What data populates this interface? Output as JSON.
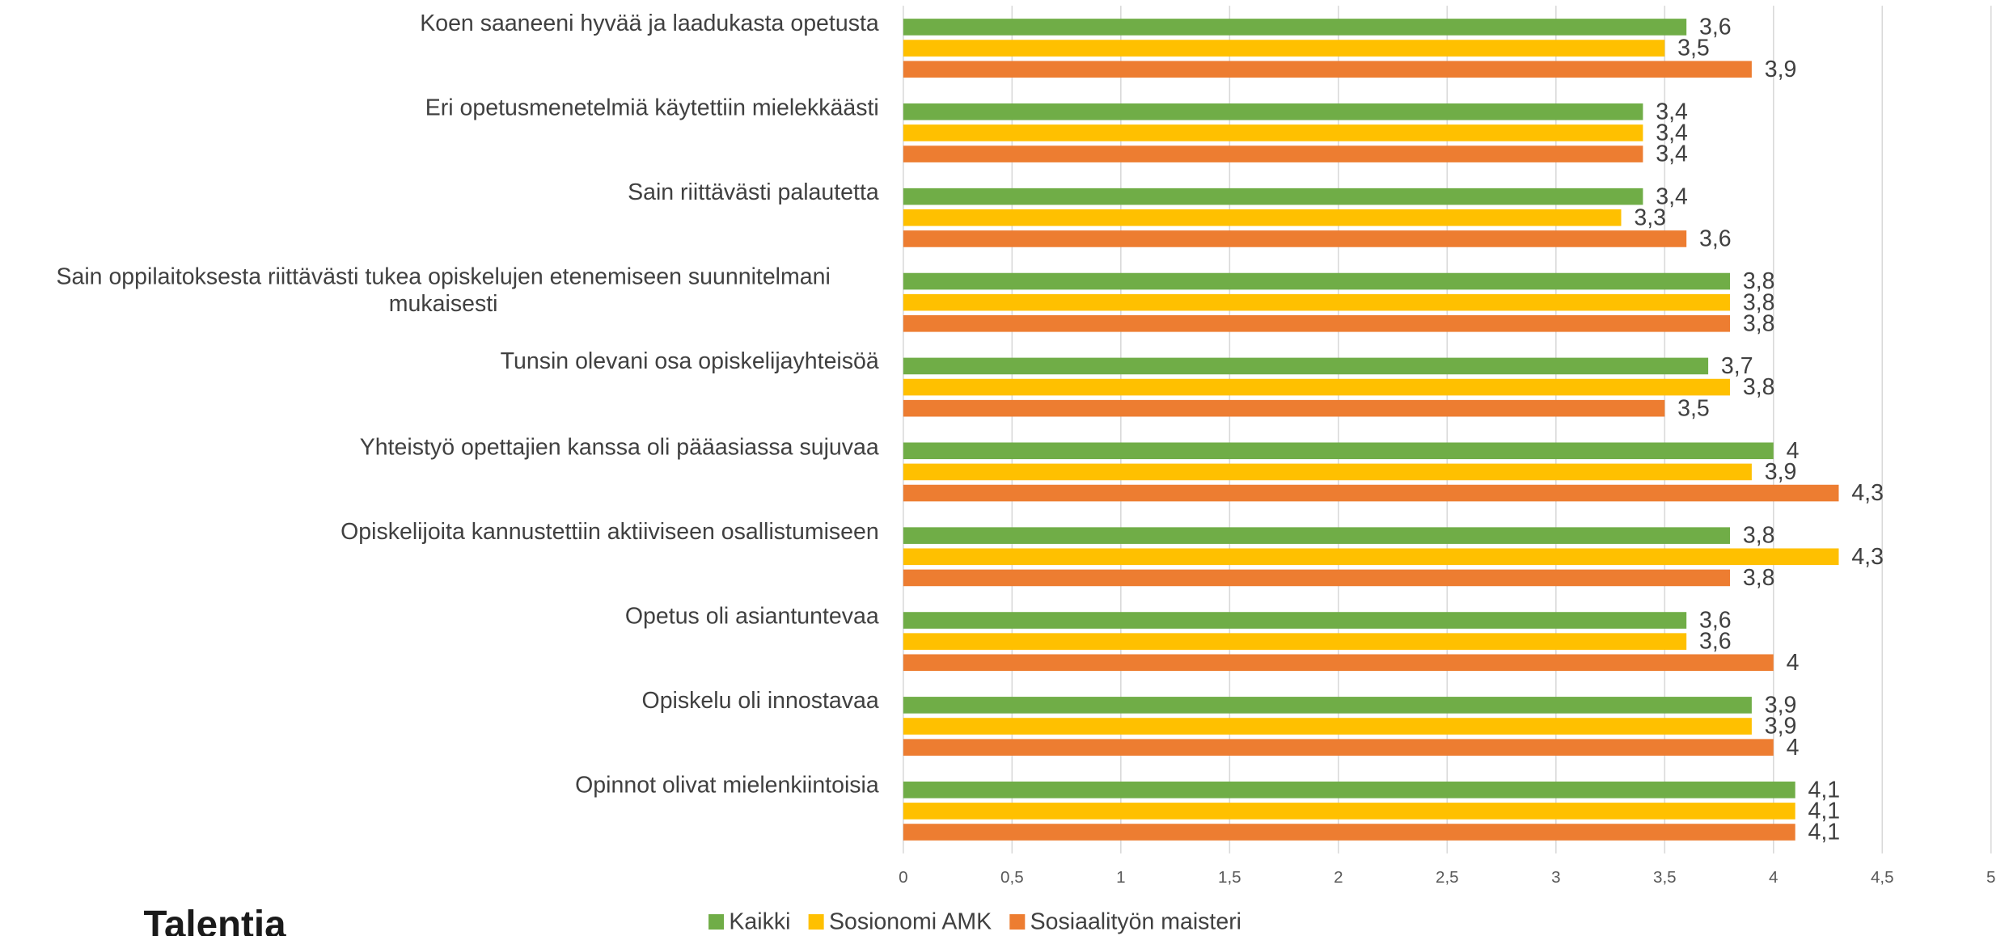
{
  "chart_data": {
    "type": "barh",
    "categories": [
      "Koen saaneeni hyvää ja laadukasta opetusta",
      "Eri opetusmenetelmiä käytettiin mielekkäästi",
      "Sain riittävästi palautetta",
      "Sain oppilaitoksesta riittävästi tukea opiskelujen etenemiseen suunnitelmani mukaisesti",
      "Tunsin olevani osa opiskelijayhteisöä",
      "Yhteistyö opettajien kanssa oli pääasiassa sujuvaa",
      "Opiskelijoita kannustettiin aktiiviseen osallistumiseen",
      "Opetus oli asiantuntevaa",
      "Opiskelu oli innostavaa",
      "Opinnot olivat mielenkiintoisia"
    ],
    "series": [
      {
        "name": "Kaikki",
        "color": "#70ad47",
        "values": [
          3.6,
          3.4,
          3.4,
          3.8,
          3.7,
          4,
          3.8,
          3.6,
          3.9,
          4.1
        ],
        "value_labels": [
          "3,6",
          "3,4",
          "3,4",
          "3,8",
          "3,7",
          "4",
          "3,8",
          "3,6",
          "3,9",
          "4,1"
        ]
      },
      {
        "name": "Sosionomi AMK",
        "color": "#ffc000",
        "values": [
          3.5,
          3.4,
          3.3,
          3.8,
          3.8,
          3.9,
          4.3,
          3.6,
          3.9,
          4.1
        ],
        "value_labels": [
          "3,5",
          "3,4",
          "3,3",
          "3,8",
          "3,8",
          "3,9",
          "4,3",
          "3,6",
          "3,9",
          "4,1"
        ]
      },
      {
        "name": "Sosiaalityön maisteri",
        "color": "#ed7d31",
        "values": [
          3.9,
          3.4,
          3.6,
          3.8,
          3.5,
          4.3,
          3.8,
          4,
          4,
          4.1
        ],
        "value_labels": [
          "3,9",
          "3,4",
          "3,6",
          "3,8",
          "3,5",
          "4,3",
          "3,8",
          "4",
          "4",
          "4,1"
        ]
      }
    ],
    "xlim": [
      0,
      5
    ],
    "xticks": [
      0,
      {
        "value": 0.5,
        "label": "0,5"
      },
      1,
      {
        "value": 1.5,
        "label": "1,5"
      },
      2,
      {
        "value": 2.5,
        "label": "2,5"
      },
      3,
      {
        "value": 3.5,
        "label": "3,5"
      },
      4,
      {
        "value": 4.5,
        "label": "4,5"
      },
      5
    ],
    "grid": true,
    "legend": "bottom"
  },
  "logo": "Talentia"
}
